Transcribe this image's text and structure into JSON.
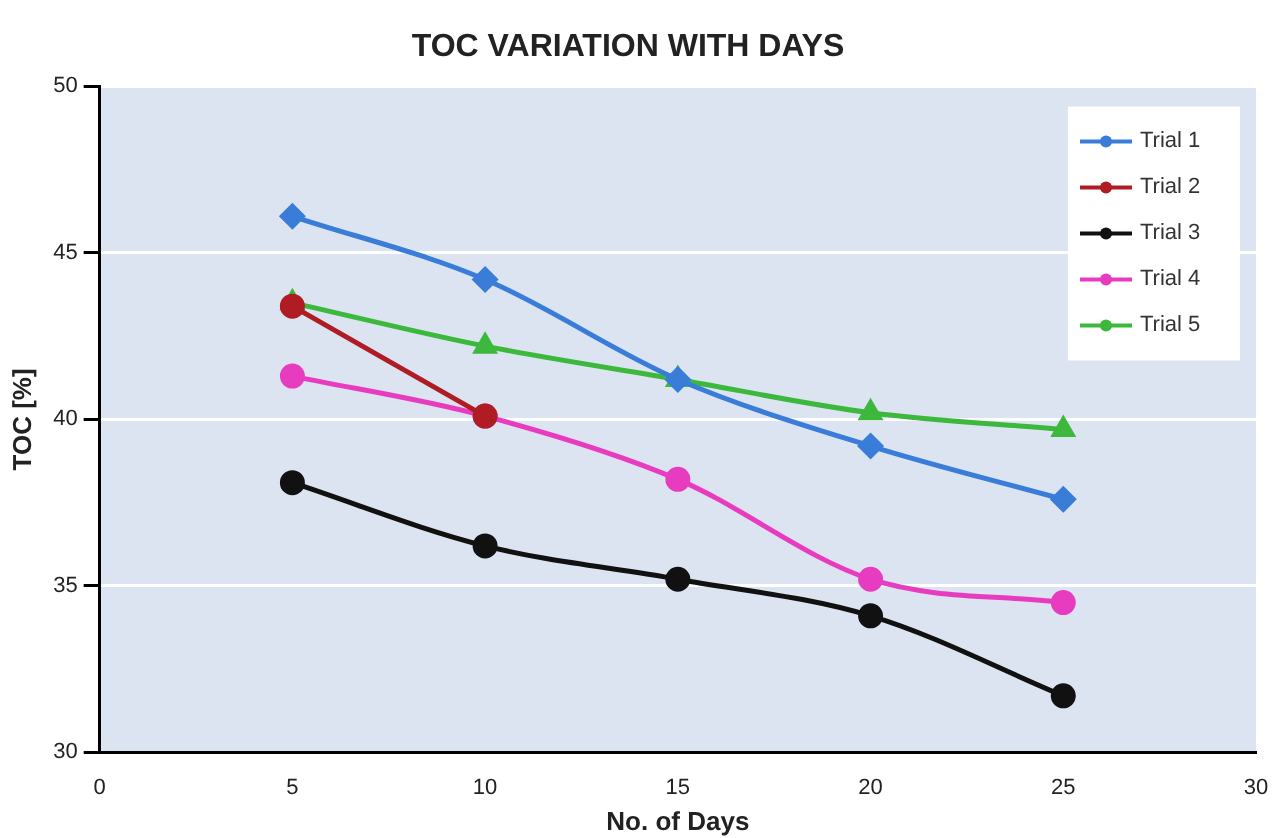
{
  "chart_data": {
    "type": "line",
    "title": "TOC VARIATION WITH DAYS",
    "xlabel": "No. of Days",
    "ylabel": "TOC [%]",
    "x": [
      5,
      10,
      15,
      20,
      25
    ],
    "series": [
      {
        "name": "Trial 1",
        "color": "#3a7dd8",
        "marker": "diamond",
        "values": [
          46.1,
          44.2,
          41.2,
          39.2,
          37.6
        ]
      },
      {
        "name": "Trial 2",
        "color": "#b01c24",
        "marker": "circle",
        "values": [
          43.4,
          40.1,
          null,
          null,
          null
        ]
      },
      {
        "name": "Trial 3",
        "color": "#111111",
        "marker": "circle",
        "values": [
          38.1,
          36.2,
          35.2,
          34.1,
          31.7
        ]
      },
      {
        "name": "Trial 4",
        "color": "#e83cc0",
        "marker": "circle",
        "values": [
          41.3,
          40.1,
          38.2,
          35.2,
          34.5
        ]
      },
      {
        "name": "Trial 5",
        "color": "#3cb83c",
        "marker": "triangle",
        "values": [
          43.5,
          42.2,
          41.2,
          40.2,
          39.7
        ]
      }
    ],
    "xlim": [
      0,
      30
    ],
    "xticks": [
      0,
      5,
      10,
      15,
      20,
      25,
      30
    ],
    "ylim": [
      30,
      50
    ],
    "yticks": [
      30,
      35,
      40,
      45,
      50
    ],
    "grid": "y",
    "legend": "top right",
    "line_style": "solid"
  }
}
